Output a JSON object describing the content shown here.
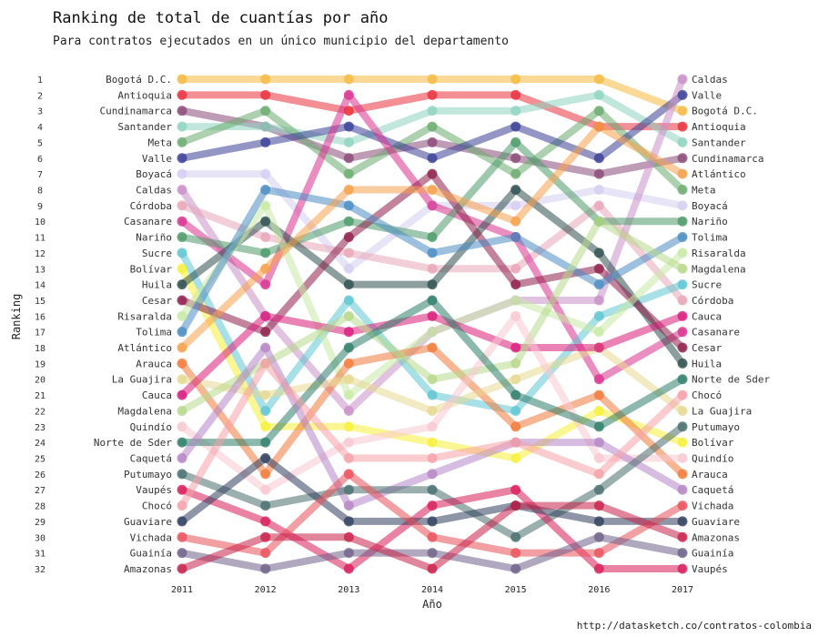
{
  "title": "Ranking de total de cuantías por año",
  "subtitle": "Para contratos ejecutados en un único municipio del departamento",
  "caption": "http://datasketch.co/contratos-colombia",
  "chart_data": {
    "type": "line",
    "chart_kind": "bump",
    "xlabel": "Año",
    "ylabel": "Ranking",
    "x": [
      2011,
      2012,
      2013,
      2014,
      2015,
      2016,
      2017
    ],
    "rank_ticks": [
      1,
      2,
      3,
      4,
      5,
      6,
      7,
      8,
      9,
      10,
      11,
      12,
      13,
      14,
      15,
      16,
      17,
      18,
      19,
      20,
      21,
      22,
      23,
      24,
      25,
      26,
      27,
      28,
      29,
      30,
      31,
      32
    ],
    "ylim": [
      1,
      32
    ],
    "y_reversed": true,
    "grid": false,
    "legend": "none",
    "series": [
      {
        "name": "Bogotá D.C.",
        "color": "#f5b942",
        "values": [
          1,
          1,
          1,
          1,
          1,
          1,
          3
        ]
      },
      {
        "name": "Antioquia",
        "color": "#e8313c",
        "values": [
          2,
          2,
          3,
          2,
          2,
          4,
          4
        ]
      },
      {
        "name": "Cundinamarca",
        "color": "#8a4a78",
        "values": [
          3,
          4,
          6,
          5,
          6,
          7,
          6
        ]
      },
      {
        "name": "Santander",
        "color": "#8ed3c0",
        "values": [
          4,
          4,
          5,
          3,
          3,
          2,
          5
        ]
      },
      {
        "name": "Meta",
        "color": "#6aab6e",
        "values": [
          5,
          3,
          7,
          4,
          7,
          3,
          8
        ]
      },
      {
        "name": "Valle",
        "color": "#3b3f96",
        "values": [
          6,
          5,
          4,
          6,
          4,
          6,
          2
        ]
      },
      {
        "name": "Boyacá",
        "color": "#d6cdf0",
        "values": [
          7,
          7,
          13,
          9,
          9,
          8,
          9
        ]
      },
      {
        "name": "Caldas",
        "color": "#c990c8",
        "values": [
          8,
          16,
          22,
          17,
          15,
          15,
          1
        ]
      },
      {
        "name": "Córdoba",
        "color": "#e8a6b8",
        "values": [
          9,
          11,
          12,
          13,
          13,
          9,
          15
        ]
      },
      {
        "name": "Casanare",
        "color": "#d8328f",
        "values": [
          10,
          14,
          2,
          9,
          11,
          20,
          17
        ]
      },
      {
        "name": "Nariño",
        "color": "#4c9a6a",
        "values": [
          11,
          12,
          10,
          11,
          5,
          10,
          10
        ]
      },
      {
        "name": "Sucre",
        "color": "#5ec6d2",
        "values": [
          12,
          22,
          15,
          21,
          22,
          16,
          14
        ]
      },
      {
        "name": "Bolívar",
        "color": "#f5f03a",
        "values": [
          13,
          23,
          23,
          24,
          25,
          22,
          24
        ]
      },
      {
        "name": "Huila",
        "color": "#2f4f4f",
        "values": [
          14,
          10,
          14,
          14,
          8,
          12,
          19
        ]
      },
      {
        "name": "Cesar",
        "color": "#8e1f4a",
        "values": [
          15,
          17,
          11,
          7,
          14,
          13,
          18
        ]
      },
      {
        "name": "Risaralda",
        "color": "#c8eaa6",
        "values": [
          16,
          9,
          21,
          17,
          15,
          17,
          12
        ]
      },
      {
        "name": "Tolima",
        "color": "#4a8cc2",
        "values": [
          17,
          8,
          9,
          12,
          11,
          14,
          11
        ]
      },
      {
        "name": "Atlántico",
        "color": "#f5a04a",
        "values": [
          18,
          13,
          8,
          8,
          10,
          4,
          7
        ]
      },
      {
        "name": "Arauca",
        "color": "#f07a3a",
        "values": [
          19,
          26,
          19,
          18,
          23,
          21,
          26
        ]
      },
      {
        "name": "La Guajira",
        "color": "#e6d890",
        "values": [
          20,
          21,
          20,
          22,
          20,
          18,
          22
        ]
      },
      {
        "name": "Cauca",
        "color": "#d81b7a",
        "values": [
          21,
          16,
          17,
          16,
          18,
          18,
          16
        ]
      },
      {
        "name": "Magdalena",
        "color": "#b8d88a",
        "values": [
          22,
          19,
          16,
          20,
          19,
          10,
          13
        ]
      },
      {
        "name": "Quindío",
        "color": "#f7c8d2",
        "values": [
          23,
          27,
          24,
          23,
          16,
          25,
          25
        ]
      },
      {
        "name": "Norte de Sder",
        "color": "#2e7d6a",
        "values": [
          24,
          24,
          18,
          15,
          21,
          23,
          20
        ]
      },
      {
        "name": "Caquetá",
        "color": "#b585c6",
        "values": [
          25,
          18,
          28,
          26,
          24,
          24,
          27
        ]
      },
      {
        "name": "Putumayo",
        "color": "#4a6e6e",
        "values": [
          26,
          28,
          27,
          27,
          30,
          27,
          23
        ]
      },
      {
        "name": "Vaupés",
        "color": "#d81b5a",
        "values": [
          27,
          29,
          32,
          28,
          27,
          32,
          32
        ]
      },
      {
        "name": "Chocó",
        "color": "#f5a0a8",
        "values": [
          28,
          19,
          25,
          25,
          24,
          26,
          21
        ]
      },
      {
        "name": "Guaviare",
        "color": "#2f3e5c",
        "values": [
          29,
          25,
          29,
          29,
          28,
          29,
          29
        ]
      },
      {
        "name": "Vichada",
        "color": "#e8505a",
        "values": [
          30,
          31,
          26,
          30,
          31,
          31,
          28
        ]
      },
      {
        "name": "Guainía",
        "color": "#6e6088",
        "values": [
          31,
          32,
          31,
          31,
          32,
          30,
          31
        ]
      },
      {
        "name": "Amazonas",
        "color": "#c8204a",
        "values": [
          32,
          30,
          30,
          32,
          28,
          28,
          30
        ]
      }
    ]
  }
}
